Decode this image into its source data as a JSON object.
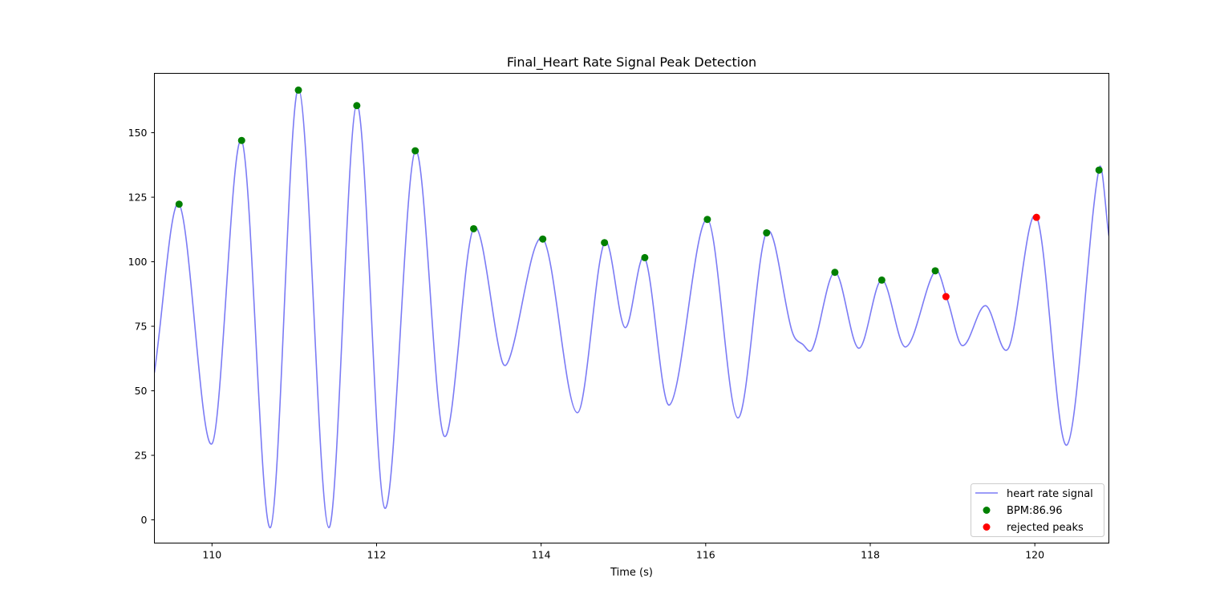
{
  "chart_data": {
    "type": "line",
    "title": "Final_Heart Rate Signal Peak Detection",
    "xlabel": "Time (s)",
    "ylabel": "",
    "xlim": [
      109.3,
      120.9
    ],
    "ylim": [
      -9,
      173
    ],
    "xticks": [
      110,
      112,
      114,
      116,
      118,
      120
    ],
    "yticks": [
      0,
      25,
      50,
      75,
      100,
      125,
      150
    ],
    "grid": false,
    "legend_position": "lower-right",
    "colors": {
      "signal": "#7b7bf5",
      "accepted": "#008000",
      "rejected": "#ff0000"
    },
    "series": [
      {
        "name": "heart rate signal",
        "kind": "line",
        "knots": [
          [
            109.3,
            57
          ],
          [
            109.6,
            122.3
          ],
          [
            110.0,
            29.5
          ],
          [
            110.36,
            147
          ],
          [
            110.71,
            -3
          ],
          [
            111.05,
            167
          ],
          [
            111.42,
            -3
          ],
          [
            111.76,
            161
          ],
          [
            112.1,
            4.5
          ],
          [
            112.47,
            143
          ],
          [
            112.82,
            32.5
          ],
          [
            113.18,
            113
          ],
          [
            113.52,
            62
          ],
          [
            113.62,
            63
          ],
          [
            114.02,
            109
          ],
          [
            114.44,
            41.5
          ],
          [
            114.77,
            107.5
          ],
          [
            115.02,
            74.5
          ],
          [
            115.26,
            101.5
          ],
          [
            115.56,
            44.5
          ],
          [
            116.02,
            116.5
          ],
          [
            116.39,
            39.5
          ],
          [
            116.74,
            111.5
          ],
          [
            117.05,
            73
          ],
          [
            117.18,
            68
          ],
          [
            117.3,
            66.5
          ],
          [
            117.57,
            96
          ],
          [
            117.86,
            66.5
          ],
          [
            118.14,
            93
          ],
          [
            118.43,
            67
          ],
          [
            118.79,
            96.5
          ],
          [
            118.94,
            85
          ],
          [
            119.12,
            67.5
          ],
          [
            119.4,
            83
          ],
          [
            119.68,
            66.5
          ],
          [
            120.02,
            117.5
          ],
          [
            120.39,
            29
          ],
          [
            120.78,
            136
          ],
          [
            120.9,
            110
          ]
        ]
      },
      {
        "name": "BPM:86.96",
        "kind": "scatter",
        "x": [
          109.6,
          110.36,
          111.05,
          111.76,
          112.47,
          113.18,
          114.02,
          114.77,
          115.26,
          116.02,
          116.74,
          117.57,
          118.14,
          118.79,
          120.78
        ],
        "y": [
          122.3,
          147,
          166.5,
          160.5,
          143,
          112.8,
          108.8,
          107.4,
          101.6,
          116.4,
          111.2,
          95.9,
          92.9,
          96.5,
          135.5
        ]
      },
      {
        "name": "rejected peaks",
        "kind": "scatter",
        "x": [
          118.92,
          120.02
        ],
        "y": [
          86.5,
          117.2
        ]
      }
    ]
  }
}
